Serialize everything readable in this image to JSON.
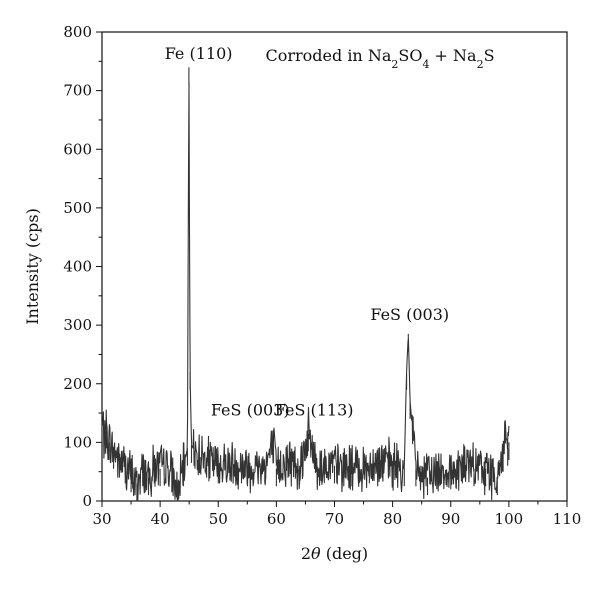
{
  "chart_data": {
    "type": "line",
    "title": "",
    "xlabel_prefix": "2",
    "xlabel_symbol": "θ",
    "xlabel_suffix": " (deg)",
    "ylabel": "Intensity (cps)",
    "xlim": [
      30,
      110
    ],
    "ylim": [
      0,
      800
    ],
    "xticks": [
      30,
      40,
      50,
      60,
      70,
      80,
      90,
      100,
      110
    ],
    "yticks": [
      0,
      100,
      200,
      300,
      400,
      500,
      600,
      700,
      800
    ],
    "grid": false,
    "legend": {
      "position": "top-right",
      "parts": [
        {
          "text": "Corroded in Na",
          "sub": false
        },
        {
          "text": "2",
          "sub": true
        },
        {
          "text": "SO",
          "sub": false
        },
        {
          "text": "4",
          "sub": true
        },
        {
          "text": " + Na",
          "sub": false
        },
        {
          "text": "2",
          "sub": true
        },
        {
          "text": "S",
          "sub": false
        }
      ]
    },
    "line_color": "#333333",
    "background_level_cps": 50,
    "noise_amplitude_cps": 40,
    "series": [
      {
        "x": [
          30.0,
          30.4,
          30.8,
          31.2,
          32.0,
          33.0,
          34.0,
          35.0,
          36.0,
          37.0,
          38.0,
          39.0,
          40.0,
          41.0,
          42.0,
          43.0,
          44.0,
          44.7,
          44.95,
          45.15,
          45.4,
          46.0,
          47.0,
          48.0,
          50.0,
          52.0,
          54.0,
          56.0,
          58.0,
          59.5,
          60.0,
          62.0,
          64.0,
          65.5,
          67.0,
          70.0,
          73.0,
          76.0,
          78.0,
          80.0,
          82.0,
          82.4,
          82.7,
          83.0,
          84.0,
          86.0,
          88.0,
          90.0,
          92.0,
          94.0,
          96.0,
          98.0,
          99.0,
          99.4,
          99.8,
          100.0
        ],
        "y": [
          130,
          110,
          120,
          100,
          85,
          70,
          60,
          45,
          30,
          55,
          40,
          60,
          55,
          60,
          45,
          10,
          55,
          90,
          740,
          220,
          95,
          85,
          75,
          70,
          60,
          65,
          60,
          55,
          60,
          95,
          55,
          70,
          60,
          115,
          60,
          60,
          55,
          60,
          70,
          60,
          55,
          220,
          285,
          170,
          55,
          40,
          55,
          50,
          60,
          55,
          55,
          40,
          80,
          128,
          90,
          100
        ]
      }
    ],
    "annotations": [
      {
        "text": "Fe (110)",
        "x": 44.9,
        "y": 740
      },
      {
        "text": "FeS (003)",
        "x": 82.6,
        "y": 285
      },
      {
        "text": "FeS (003)",
        "x": 55.5,
        "y": 115
      },
      {
        "text": "FeS (113)",
        "x": 66.5,
        "y": 115
      }
    ]
  }
}
